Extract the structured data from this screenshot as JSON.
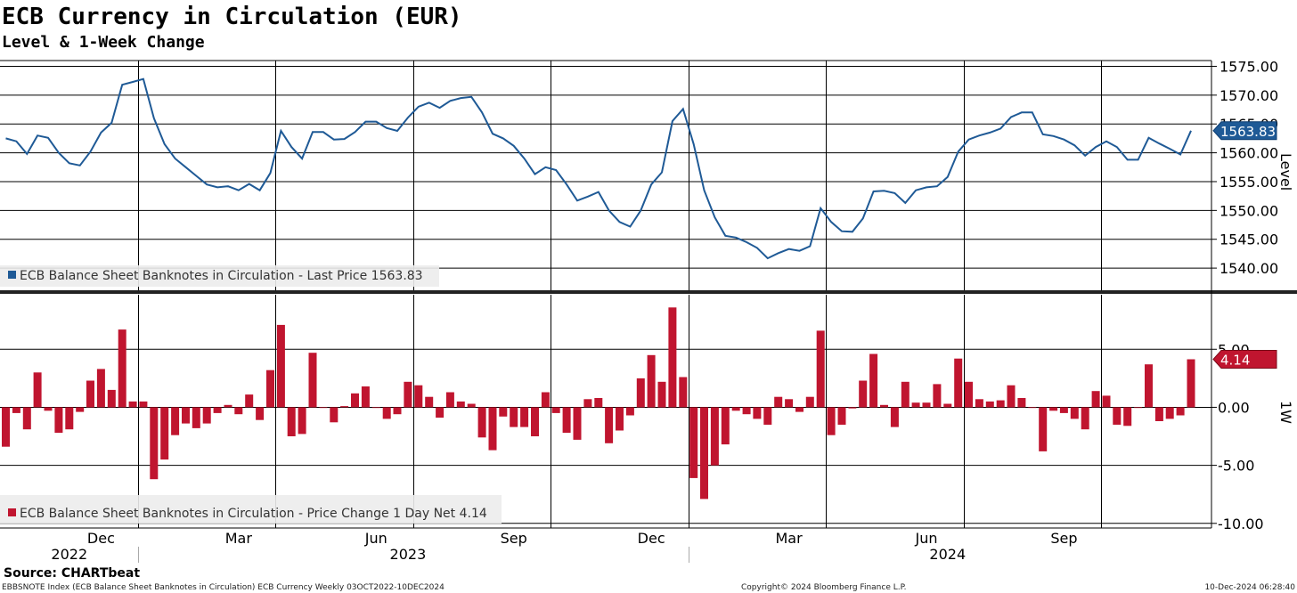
{
  "title": "ECB Currency in Circulation (EUR)",
  "subtitle": "Level & 1-Week Change",
  "source": "Source: CHARTbeat",
  "footer_left": "EBBSNOTE Index (ECB Balance Sheet Banknotes in Circulation) ECB Currency  Weekly 03OCT2022-10DEC2024",
  "footer_center": "Copyright© 2024 Bloomberg Finance L.P.",
  "footer_right": "10-Dec-2024 06:28:40",
  "chart_data": [
    {
      "type": "line",
      "name": "level",
      "ylabel": "Level",
      "ylim": [
        1536,
        1576
      ],
      "yticks": [
        "1540.00",
        "1545.00",
        "1550.00",
        "1555.00",
        "1560.00",
        "1565.00",
        "1570.00",
        "1575.00"
      ],
      "color": "#1f5a96",
      "legend": "ECB Balance Sheet Banknotes in Circulation - Last Price 1563.83",
      "last_value_label": "1563.83",
      "values": [
        1562.5,
        1562.0,
        1559.8,
        1563.0,
        1562.6,
        1560.0,
        1558.2,
        1557.8,
        1560.2,
        1563.5,
        1565.2,
        1571.8,
        1572.3,
        1572.8,
        1566.0,
        1561.5,
        1559.0,
        1557.5,
        1556.0,
        1554.5,
        1554.0,
        1554.2,
        1553.5,
        1554.6,
        1553.5,
        1556.5,
        1563.8,
        1561.0,
        1559.0,
        1563.6,
        1563.6,
        1562.3,
        1562.4,
        1563.6,
        1565.4,
        1565.4,
        1564.3,
        1563.8,
        1566.1,
        1568.0,
        1568.7,
        1567.8,
        1569.0,
        1569.5,
        1569.7,
        1567.0,
        1563.3,
        1562.5,
        1561.2,
        1559.0,
        1556.3,
        1557.5,
        1557.0,
        1554.5,
        1551.7,
        1552.4,
        1553.2,
        1550.0,
        1548.0,
        1547.2,
        1550.0,
        1554.5,
        1556.6,
        1565.5,
        1567.6,
        1561.5,
        1553.5,
        1548.8,
        1545.6,
        1545.3,
        1544.5,
        1543.5,
        1541.7,
        1542.6,
        1543.3,
        1543.0,
        1543.8,
        1550.4,
        1548.0,
        1546.4,
        1546.3,
        1548.6,
        1553.3,
        1553.4,
        1553.0,
        1551.3,
        1553.5,
        1554.0,
        1554.2,
        1555.8,
        1560.2,
        1562.3,
        1563.0,
        1563.5,
        1564.2,
        1566.2,
        1567.0,
        1567.0,
        1563.2,
        1562.9,
        1562.3,
        1561.3,
        1559.5,
        1561.0,
        1562.0,
        1561.0,
        1558.8,
        1558.8,
        1562.6,
        1561.6,
        1560.7,
        1559.7,
        1563.83
      ]
    },
    {
      "type": "bar",
      "name": "change",
      "ylabel": "1W",
      "ylim": [
        -10.4,
        9.7
      ],
      "yticks": [
        "-10.00",
        "-5.00",
        "0.00",
        "5.00"
      ],
      "color": "#c0152f",
      "legend": "ECB Balance Sheet Banknotes in Circulation - Price Change 1 Day Net 4.14",
      "last_value_label": "4.14",
      "values": [
        -3.4,
        -0.5,
        -1.9,
        3.0,
        -0.3,
        -2.2,
        -1.9,
        -0.4,
        2.3,
        3.3,
        1.5,
        6.7,
        0.5,
        0.5,
        -6.2,
        -4.5,
        -2.4,
        -1.4,
        -1.8,
        -1.4,
        -0.5,
        0.2,
        -0.6,
        1.1,
        -1.1,
        3.2,
        7.1,
        -2.5,
        -2.3,
        4.7,
        0.0,
        -1.3,
        0.1,
        1.2,
        1.8,
        0.0,
        -1.0,
        -0.6,
        2.2,
        1.9,
        0.9,
        -0.9,
        1.3,
        0.5,
        0.3,
        -2.6,
        -3.7,
        -0.8,
        -1.7,
        -1.7,
        -2.5,
        1.3,
        -0.5,
        -2.2,
        -2.8,
        0.7,
        0.8,
        -3.1,
        -2.0,
        -0.7,
        2.5,
        4.5,
        2.2,
        8.6,
        2.6,
        -6.1,
        -7.9,
        -5.0,
        -3.2,
        -0.3,
        -0.6,
        -1.0,
        -1.5,
        0.9,
        0.7,
        -0.4,
        0.9,
        6.6,
        -2.4,
        -1.5,
        -0.1,
        2.3,
        4.6,
        0.2,
        -1.7,
        2.2,
        0.4,
        0.4,
        2.0,
        0.3,
        4.2,
        2.2,
        0.7,
        0.5,
        0.6,
        1.9,
        0.8,
        0.0,
        -3.8,
        -0.3,
        -0.5,
        -1.0,
        -1.9,
        1.4,
        1.0,
        -1.5,
        -1.6,
        0.0,
        3.7,
        -1.2,
        -1.0,
        -0.7,
        4.14
      ]
    }
  ],
  "x_axis": {
    "months": [
      {
        "label": "Dec",
        "week": 9
      },
      {
        "label": "Mar",
        "week": 22
      },
      {
        "label": "Jun",
        "week": 35
      },
      {
        "label": "Sep",
        "week": 48
      },
      {
        "label": "Dec",
        "week": 61
      },
      {
        "label": "Mar",
        "week": 74
      },
      {
        "label": "Jun",
        "week": 87
      },
      {
        "label": "Sep",
        "week": 100
      }
    ],
    "years": [
      {
        "label": "2022",
        "week": 6
      },
      {
        "label": "2023",
        "week": 38
      },
      {
        "label": "2024",
        "week": 89
      }
    ],
    "gridlines_at_week": [
      12.5,
      25.5,
      38.5,
      51.5,
      64.5,
      77.5,
      90.5,
      103.5
    ],
    "year_breaks_at_week": [
      12.5,
      64.5
    ]
  }
}
